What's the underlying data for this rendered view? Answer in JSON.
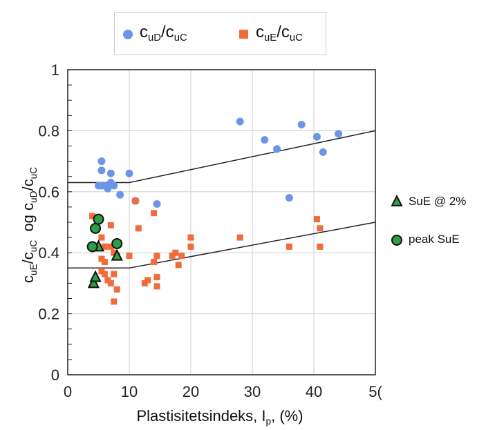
{
  "legend": {
    "series_ud": {
      "main": "c",
      "sub1": "uD",
      "slash": "/c",
      "sub2": "uC"
    },
    "series_ue": {
      "main": "c",
      "sub1": "uE",
      "slash": "/c",
      "sub2": "uC"
    }
  },
  "axis_labels": {
    "y": {
      "p1": "c",
      "s1": "uE",
      "p2": "/c",
      "s2": "uC",
      "p3": "  og c",
      "s3": "uD",
      "p4": "/c",
      "s4": "uC"
    },
    "x": {
      "p1": "Plastisitetsindeks, I",
      "s1": "p",
      "p2": ", (%)"
    }
  },
  "side_legend": {
    "triangle_label": "SuE @ 2%",
    "circle_label": "peak SuE"
  },
  "colors": {
    "ud": "#6b95e6",
    "ue": "#f26b3a",
    "green": "#2e9e44"
  },
  "chart_data": {
    "type": "scatter",
    "xlim": [
      0,
      50
    ],
    "ylim": [
      0,
      1
    ],
    "x_ticks": [
      "0",
      "10",
      "20",
      "30",
      "40",
      "5("
    ],
    "y_ticks": [
      "0",
      "0.2",
      "0.4",
      "0.6",
      "0.8",
      "1"
    ],
    "grid": true,
    "legend_position": "top",
    "series": [
      {
        "marker": "circle",
        "color": "#6b95e6",
        "points": [
          [
            5.5,
            0.7
          ],
          [
            5.5,
            0.67
          ],
          [
            7,
            0.66
          ],
          [
            10,
            0.66
          ],
          [
            5.5,
            0.62
          ],
          [
            6,
            0.62
          ],
          [
            6.5,
            0.61
          ],
          [
            7,
            0.63
          ],
          [
            7.5,
            0.62
          ],
          [
            5,
            0.62
          ],
          [
            8.5,
            0.59
          ],
          [
            11,
            0.57
          ],
          [
            14.5,
            0.56
          ],
          [
            28,
            0.83
          ],
          [
            32,
            0.77
          ],
          [
            34,
            0.74
          ],
          [
            38,
            0.82
          ],
          [
            40.5,
            0.78
          ],
          [
            41.5,
            0.73
          ],
          [
            44,
            0.79
          ],
          [
            36,
            0.58
          ]
        ]
      },
      {
        "marker": "square",
        "color": "#f26b3a",
        "points": [
          [
            4,
            0.52
          ],
          [
            5,
            0.51
          ],
          [
            7,
            0.49
          ],
          [
            5.5,
            0.45
          ],
          [
            6,
            0.42
          ],
          [
            7,
            0.42
          ],
          [
            7.5,
            0.4
          ],
          [
            8,
            0.39
          ],
          [
            5.5,
            0.38
          ],
          [
            6,
            0.37
          ],
          [
            5.5,
            0.34
          ],
          [
            6,
            0.33
          ],
          [
            6.5,
            0.31
          ],
          [
            7,
            0.3
          ],
          [
            7.5,
            0.33
          ],
          [
            8,
            0.28
          ],
          [
            7.5,
            0.24
          ],
          [
            10,
            0.39
          ],
          [
            11,
            0.57
          ],
          [
            11.5,
            0.48
          ],
          [
            12.5,
            0.3
          ],
          [
            13,
            0.31
          ],
          [
            14,
            0.53
          ],
          [
            14.5,
            0.39
          ],
          [
            14,
            0.37
          ],
          [
            14.5,
            0.32
          ],
          [
            14.5,
            0.29
          ],
          [
            17,
            0.39
          ],
          [
            17.5,
            0.4
          ],
          [
            18,
            0.36
          ],
          [
            18.5,
            0.39
          ],
          [
            20,
            0.45
          ],
          [
            20,
            0.42
          ],
          [
            28,
            0.45
          ],
          [
            36,
            0.42
          ],
          [
            40.5,
            0.51
          ],
          [
            41,
            0.48
          ],
          [
            41,
            0.42
          ]
        ]
      },
      {
        "marker": "triangle",
        "color": "#2e9e44",
        "points": [
          [
            4.2,
            0.3
          ],
          [
            4.5,
            0.32
          ],
          [
            5,
            0.42
          ],
          [
            8,
            0.39
          ]
        ]
      },
      {
        "marker": "circle-outlined",
        "color": "#2e9e44",
        "points": [
          [
            4,
            0.42
          ],
          [
            4.5,
            0.48
          ],
          [
            5,
            0.51
          ],
          [
            8,
            0.43
          ]
        ]
      }
    ],
    "trend_lines": [
      {
        "points": [
          [
            0,
            0.63
          ],
          [
            10,
            0.63
          ],
          [
            50,
            0.8
          ]
        ]
      },
      {
        "points": [
          [
            0,
            0.35
          ],
          [
            10,
            0.35
          ],
          [
            50,
            0.5
          ]
        ]
      }
    ]
  }
}
